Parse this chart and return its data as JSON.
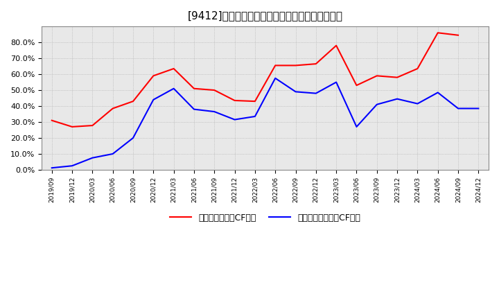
{
  "title": "[9412]　有利子負債キャッシュフロー比率の推移",
  "x_labels": [
    "2019/09",
    "2019/12",
    "2020/03",
    "2020/06",
    "2020/09",
    "2020/12",
    "2021/03",
    "2021/06",
    "2021/09",
    "2021/12",
    "2022/03",
    "2022/06",
    "2022/09",
    "2022/12",
    "2023/03",
    "2023/06",
    "2023/09",
    "2023/12",
    "2024/03",
    "2024/06",
    "2024/09",
    "2024/12"
  ],
  "red_values": [
    0.31,
    0.27,
    0.278,
    0.385,
    0.43,
    0.59,
    0.635,
    0.51,
    0.5,
    0.435,
    0.43,
    0.655,
    0.655,
    0.665,
    0.78,
    0.53,
    0.59,
    0.58,
    0.635,
    0.86,
    0.845,
    null
  ],
  "blue_values": [
    0.012,
    0.025,
    0.075,
    0.1,
    0.2,
    0.44,
    0.51,
    0.38,
    0.365,
    0.315,
    0.335,
    0.575,
    0.49,
    0.48,
    0.55,
    0.27,
    0.41,
    0.445,
    0.415,
    0.485,
    0.385,
    0.385
  ],
  "red_color": "#ff0000",
  "blue_color": "#0000ff",
  "bg_color": "#ffffff",
  "plot_bg_color": "#e8e8e8",
  "grid_color": "#aaaaaa",
  "red_label": "有利子負債営業CF比率",
  "blue_label": "有利子負債フリーCF比率",
  "ylim": [
    0.0,
    0.9
  ],
  "yticks": [
    0.0,
    0.1,
    0.2,
    0.3,
    0.4,
    0.5,
    0.6,
    0.7,
    0.8
  ],
  "line_width": 1.5
}
